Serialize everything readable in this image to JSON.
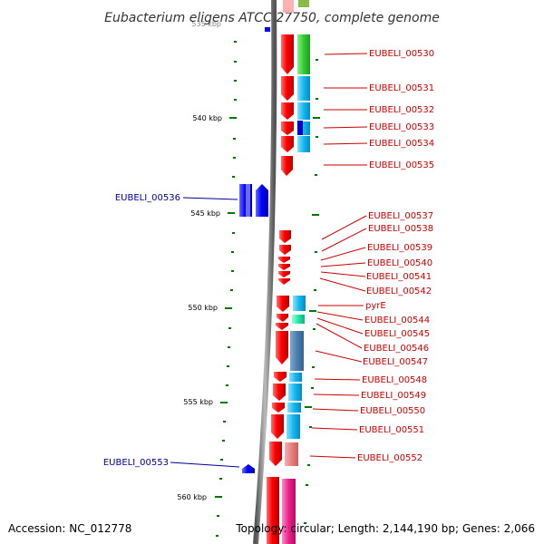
{
  "title": "Eubacterium eligens ATCC 27750, complete genome",
  "footer": {
    "accession": "Accession: NC_012778",
    "topology": "Topology: circular; Length: 2,144,190 bp; Genes: 2,066"
  },
  "top_tick_partial": "535 kbp",
  "kbp_labels": [
    "540 kbp",
    "545 kbp",
    "550 kbp",
    "555 kbp",
    "560 kbp"
  ],
  "gene_labels_right": [
    "EUBELI_00530",
    "EUBELI_00531",
    "EUBELI_00532",
    "EUBELI_00533",
    "EUBELI_00534",
    "EUBELI_00535",
    "EUBELI_00537",
    "EUBELI_00538",
    "EUBELI_00539",
    "EUBELI_00540",
    "EUBELI_00541",
    "EUBELI_00542",
    "pyrE",
    "EUBELI_00544",
    "EUBELI_00545",
    "EUBELI_00546",
    "EUBELI_00547",
    "EUBELI_00548",
    "EUBELI_00549",
    "EUBELI_00550",
    "EUBELI_00551",
    "EUBELI_00552"
  ],
  "gene_labels_left": [
    "EUBELI_00536",
    "EUBELI_00553"
  ],
  "colors": {
    "forward_gene": "#ff0000",
    "reverse_gene": "#0000ff",
    "label_red": "#cc0000",
    "label_blue": "#000099",
    "tick": "#007700"
  }
}
